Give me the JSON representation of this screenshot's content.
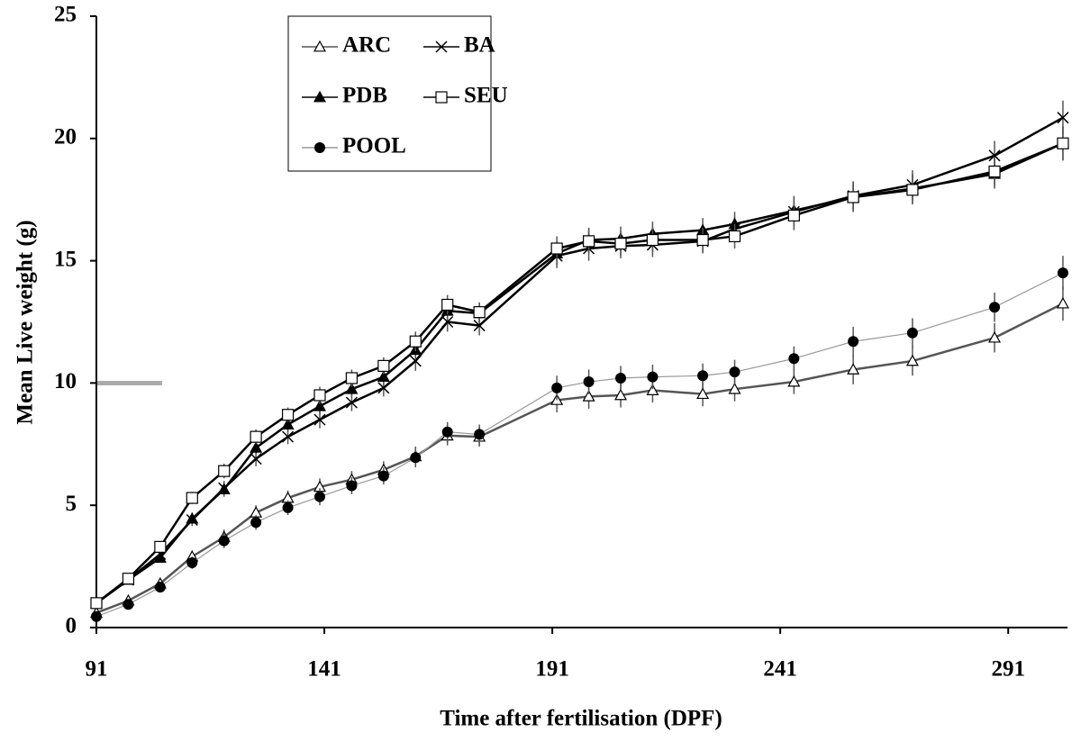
{
  "chart_data": {
    "type": "line",
    "xlabel": "Time after fertilisation (DPF)",
    "ylabel": "Mean Live weight (g)",
    "x": [
      91,
      98,
      105,
      112,
      119,
      126,
      133,
      140,
      147,
      154,
      161,
      168,
      175,
      192,
      199,
      206,
      213,
      224,
      231,
      244,
      257,
      270,
      288,
      303
    ],
    "xlim": [
      91,
      304
    ],
    "xticks": [
      91,
      141,
      191,
      241,
      291
    ],
    "ylim": [
      0,
      25
    ],
    "yticks": [
      0,
      5,
      10,
      15,
      20,
      25
    ],
    "grid": false,
    "legend": "top-left",
    "series": [
      {
        "name": "ARC",
        "color": "#555555",
        "marker": "triangle-open",
        "values": [
          0.6,
          1.1,
          1.8,
          2.9,
          3.7,
          4.7,
          5.3,
          5.75,
          6.05,
          6.45,
          7.0,
          7.85,
          7.8,
          9.3,
          9.45,
          9.5,
          9.7,
          9.55,
          9.75,
          10.05,
          10.55,
          10.9,
          11.85,
          13.25
        ],
        "errors": [
          0.1,
          0.15,
          0.2,
          0.25,
          0.3,
          0.3,
          0.3,
          0.35,
          0.35,
          0.35,
          0.4,
          0.4,
          0.4,
          0.5,
          0.5,
          0.5,
          0.5,
          0.5,
          0.5,
          0.5,
          0.6,
          0.6,
          0.6,
          0.7
        ]
      },
      {
        "name": "BA",
        "color": "#000000",
        "marker": "cross",
        "values": [
          1.0,
          1.95,
          3.0,
          4.4,
          5.7,
          6.9,
          7.8,
          8.5,
          9.2,
          9.8,
          10.9,
          12.5,
          12.35,
          15.2,
          15.5,
          15.6,
          15.65,
          15.8,
          16.3,
          17.0,
          17.65,
          18.1,
          19.3,
          20.85
        ],
        "errors": [
          0.1,
          0.15,
          0.2,
          0.25,
          0.3,
          0.3,
          0.3,
          0.35,
          0.35,
          0.35,
          0.4,
          0.4,
          0.4,
          0.5,
          0.5,
          0.5,
          0.5,
          0.5,
          0.5,
          0.6,
          0.6,
          0.6,
          0.6,
          0.7
        ]
      },
      {
        "name": "PDB",
        "color": "#000000",
        "marker": "triangle-filled",
        "values": [
          1.0,
          1.95,
          2.85,
          4.45,
          5.65,
          7.35,
          8.3,
          9.05,
          9.75,
          10.25,
          11.35,
          12.95,
          12.85,
          15.3,
          15.85,
          15.9,
          16.1,
          16.25,
          16.5,
          17.05,
          17.6,
          17.95,
          18.55,
          19.8
        ],
        "errors": [
          0.1,
          0.15,
          0.2,
          0.25,
          0.3,
          0.3,
          0.3,
          0.35,
          0.35,
          0.35,
          0.4,
          0.4,
          0.4,
          0.5,
          0.5,
          0.5,
          0.5,
          0.5,
          0.5,
          0.6,
          0.6,
          0.6,
          0.6,
          0.7
        ]
      },
      {
        "name": "SEU",
        "color": "#000000",
        "marker": "square-open",
        "values": [
          1.0,
          2.0,
          3.3,
          5.3,
          6.4,
          7.8,
          8.7,
          9.5,
          10.2,
          10.7,
          11.7,
          13.2,
          12.9,
          15.5,
          15.8,
          15.7,
          15.85,
          15.85,
          16.0,
          16.85,
          17.6,
          17.9,
          18.65,
          19.8
        ],
        "errors": [
          0.1,
          0.15,
          0.2,
          0.25,
          0.3,
          0.3,
          0.3,
          0.35,
          0.35,
          0.35,
          0.4,
          0.4,
          0.4,
          0.5,
          0.5,
          0.5,
          0.5,
          0.5,
          0.5,
          0.6,
          0.6,
          0.6,
          0.6,
          0.7
        ]
      },
      {
        "name": "POOL",
        "color": "#999999",
        "marker": "circle-filled",
        "values": [
          0.45,
          0.95,
          1.65,
          2.65,
          3.55,
          4.3,
          4.9,
          5.35,
          5.8,
          6.2,
          6.95,
          8.0,
          7.9,
          9.8,
          10.05,
          10.2,
          10.25,
          10.3,
          10.45,
          11.0,
          11.7,
          12.05,
          13.1,
          14.5
        ],
        "errors": [
          0.1,
          0.15,
          0.2,
          0.25,
          0.3,
          0.3,
          0.3,
          0.35,
          0.35,
          0.35,
          0.4,
          0.4,
          0.4,
          0.5,
          0.5,
          0.5,
          0.5,
          0.5,
          0.5,
          0.5,
          0.6,
          0.6,
          0.6,
          0.7
        ]
      }
    ]
  }
}
